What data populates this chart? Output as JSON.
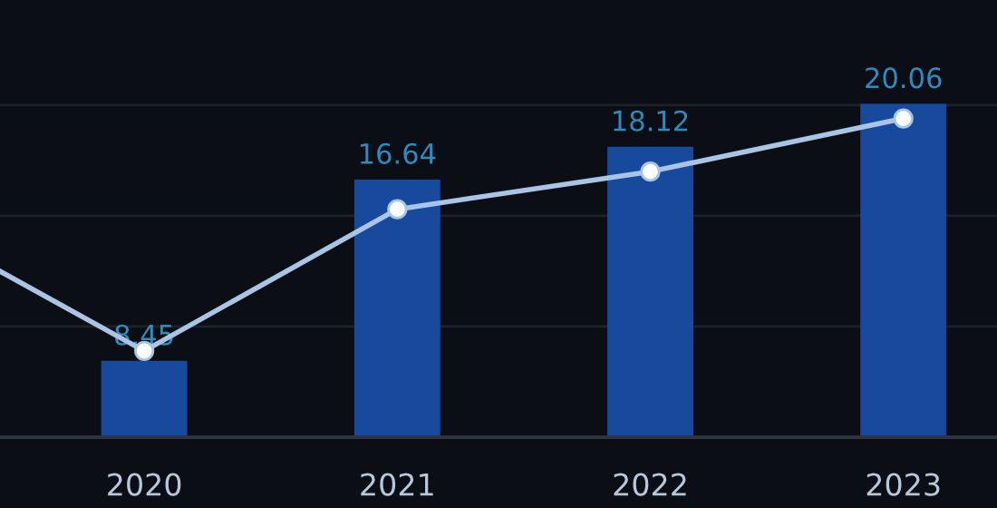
{
  "chart_data": {
    "type": "bar",
    "x": [
      2020,
      2021,
      2022,
      2023
    ],
    "series": [
      {
        "color": "#174a9c",
        "values": [
          8.45,
          16.64,
          18.12,
          20.06
        ],
        "data_labels": true
      },
      {
        "type": "line",
        "color": "#a9c4e4",
        "x": [
          2019.43,
          2020,
          2021,
          2022,
          2023
        ],
        "values": [
          12.5,
          8.9,
          15.3,
          17.0,
          19.4
        ],
        "marker": "circle",
        "line_style": "solid"
      }
    ],
    "xlim": [
      2019.43,
      2023.37
    ],
    "xticks": [
      2020,
      2021,
      2022,
      2023
    ],
    "ylim": [
      5,
      24.75
    ],
    "yticks": [
      {
        "value": 5,
        "label": null
      },
      {
        "value": 10,
        "label": null
      },
      {
        "value": 15,
        "label": null
      },
      {
        "value": 20,
        "label": null
      }
    ],
    "tick_labels": "x",
    "grid": "y",
    "legend": false
  }
}
